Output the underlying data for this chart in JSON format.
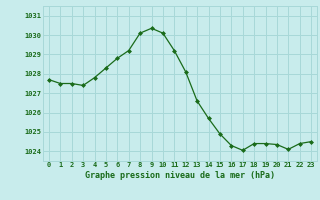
{
  "x": [
    0,
    1,
    2,
    3,
    4,
    5,
    6,
    7,
    8,
    9,
    10,
    11,
    12,
    13,
    14,
    15,
    16,
    17,
    18,
    19,
    20,
    21,
    22,
    23
  ],
  "y": [
    1027.7,
    1027.5,
    1027.5,
    1027.4,
    1027.8,
    1028.3,
    1028.8,
    1029.2,
    1030.1,
    1030.35,
    1030.1,
    1029.2,
    1028.1,
    1026.6,
    1025.7,
    1024.9,
    1024.3,
    1024.05,
    1024.4,
    1024.4,
    1024.35,
    1024.1,
    1024.4,
    1024.5
  ],
  "line_color": "#1a6b1a",
  "marker_color": "#1a6b1a",
  "bg_color": "#c8ecec",
  "grid_color": "#a8d8d8",
  "xlabel": "Graphe pression niveau de la mer (hPa)",
  "xlabel_color": "#1a6b1a",
  "tick_color": "#1a6b1a",
  "ylim_min": 1023.5,
  "ylim_max": 1031.5,
  "yticks": [
    1024,
    1025,
    1026,
    1027,
    1028,
    1029,
    1030,
    1031
  ],
  "xticks": [
    0,
    1,
    2,
    3,
    4,
    5,
    6,
    7,
    8,
    9,
    10,
    11,
    12,
    13,
    14,
    15,
    16,
    17,
    18,
    19,
    20,
    21,
    22,
    23
  ]
}
